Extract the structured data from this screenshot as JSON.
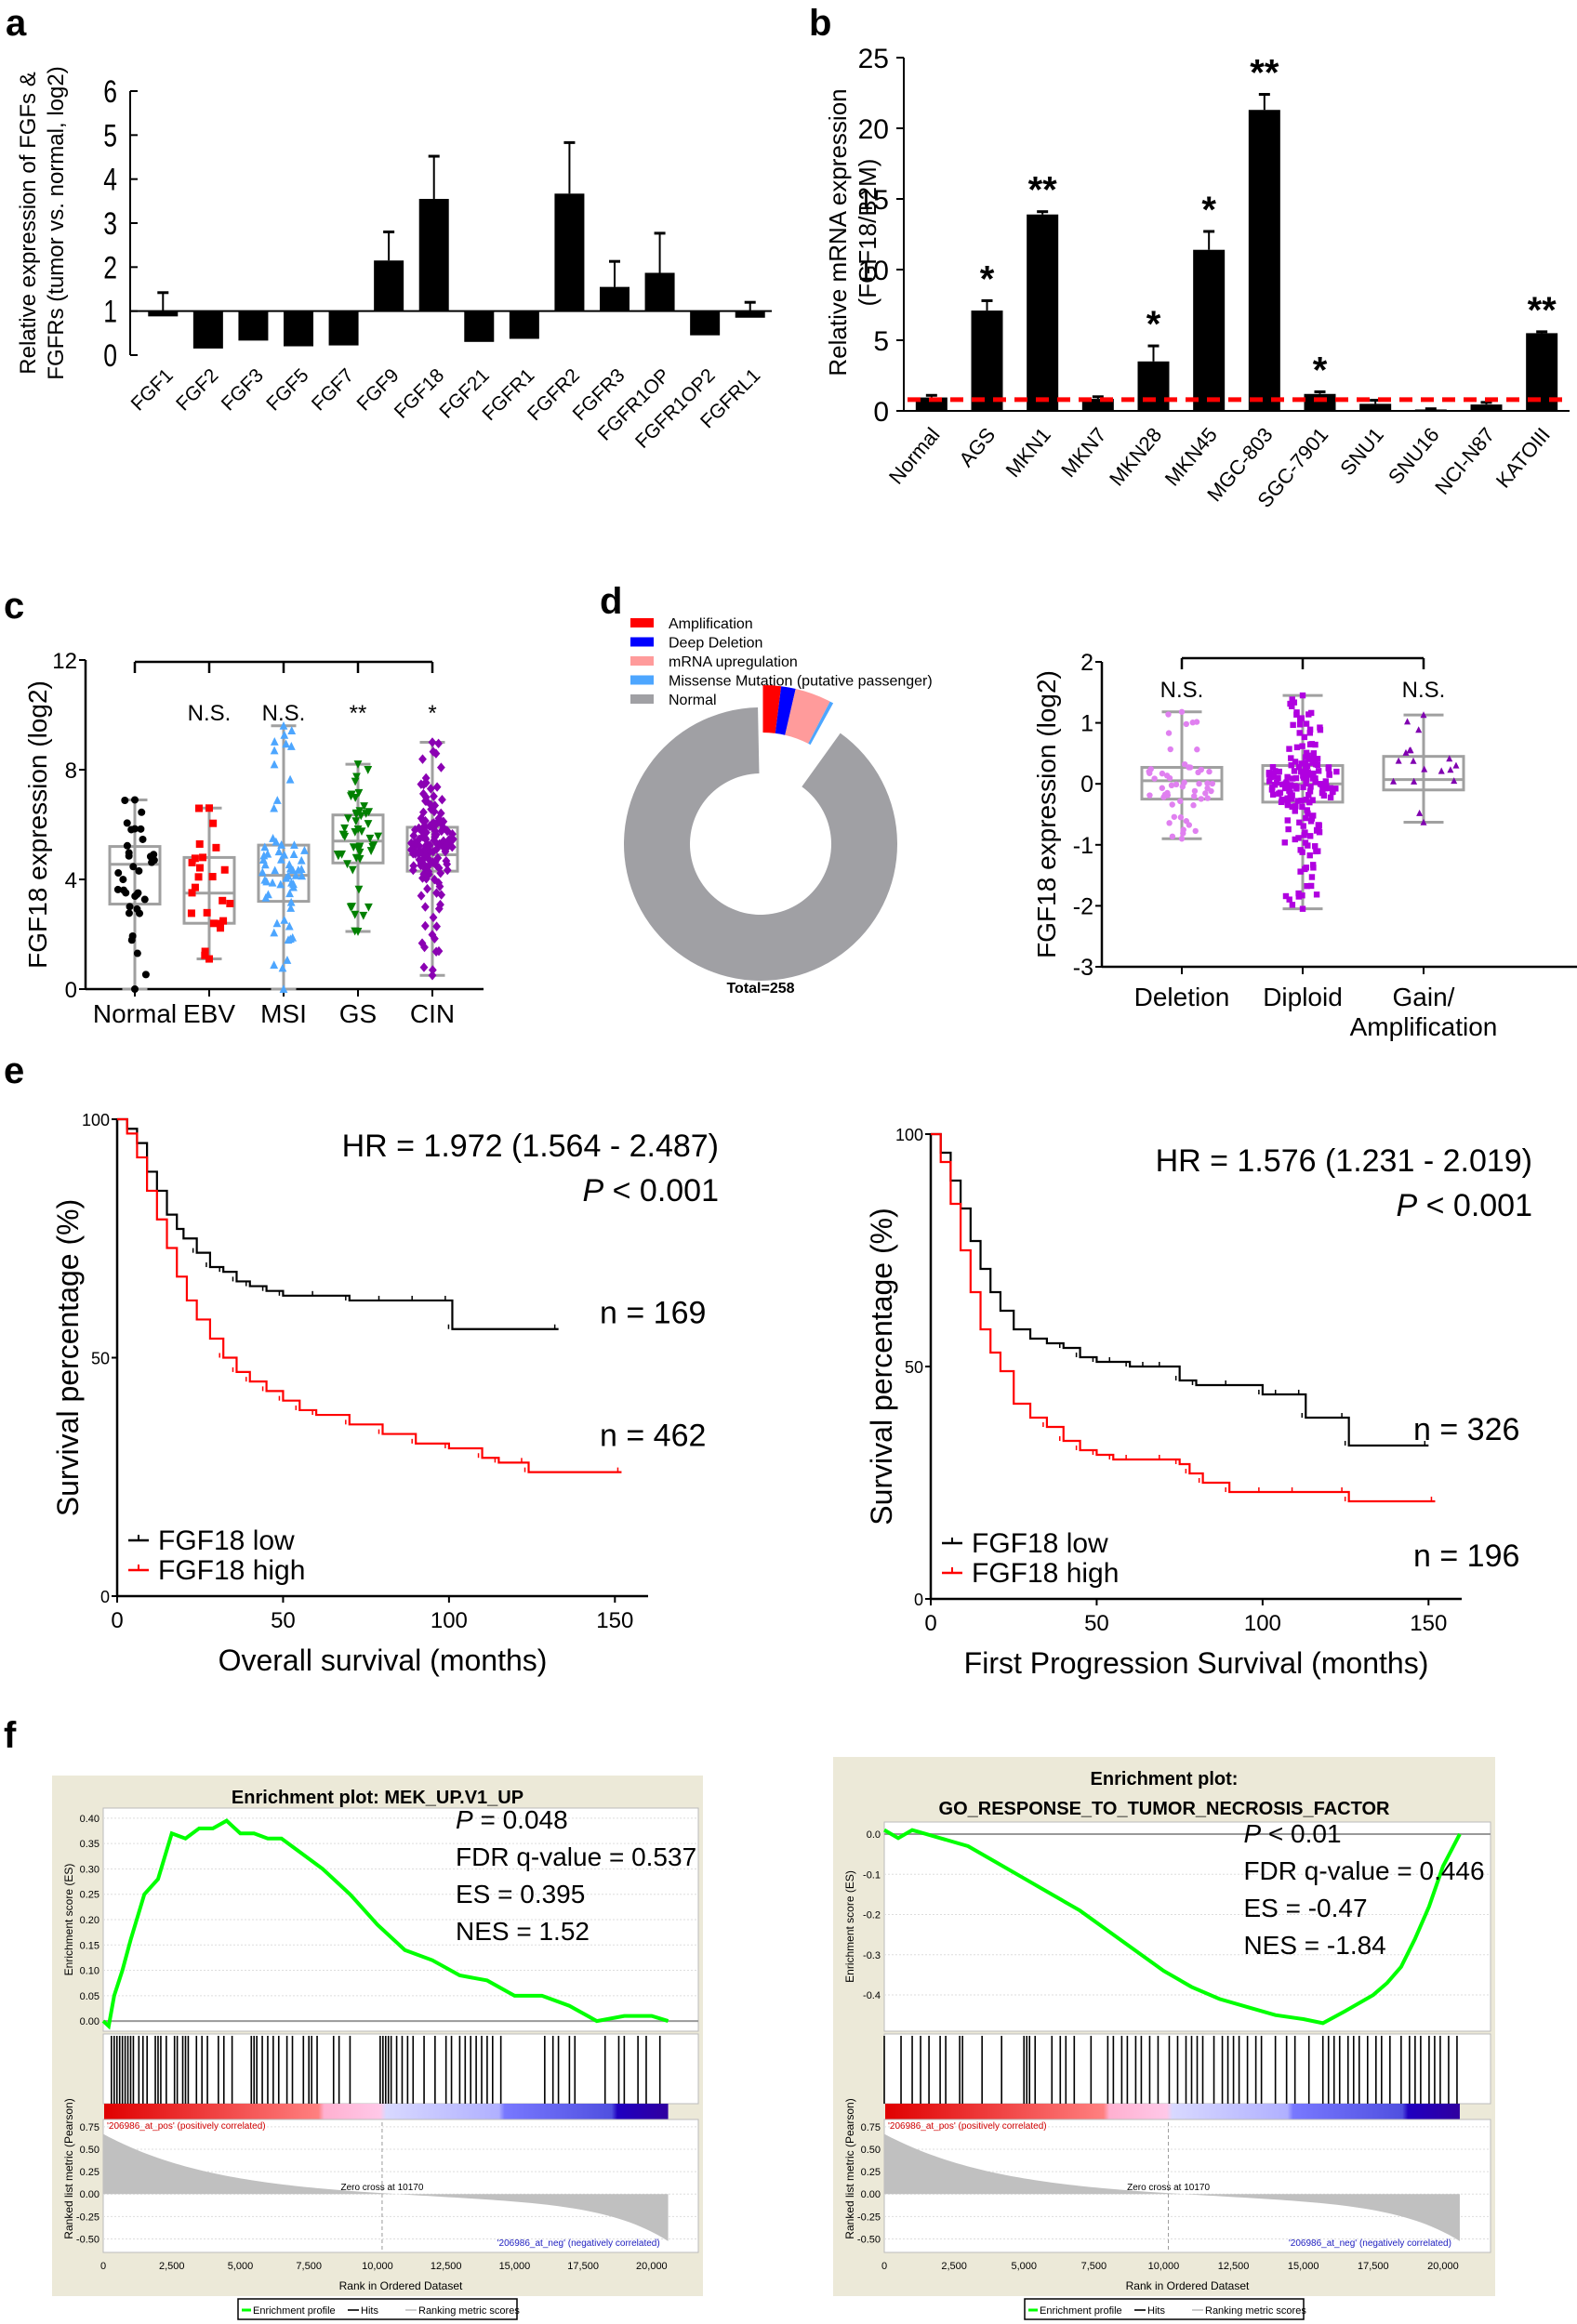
{
  "panel_labels": [
    "a",
    "b",
    "c",
    "d",
    "e",
    "f"
  ],
  "chart_data": [
    {
      "id": "a",
      "type": "bar",
      "title": "",
      "xlabel": "",
      "ylabel": "Relative expression of FGFs & FGFRs (tumor vs. normal, log2)",
      "ylabel_lines": [
        "Relative expression of FGFs &",
        "FGFRs (tumor vs. normal, log2)"
      ],
      "baseline": 1,
      "ylim": [
        0,
        6
      ],
      "yticks": [
        "0",
        "1",
        "2",
        "3",
        "4",
        "5",
        "6"
      ],
      "categories": [
        "FGF1",
        "FGF2",
        "FGF3",
        "FGF5",
        "FGF7",
        "FGF9",
        "FGF18",
        "FGF21",
        "FGFR1",
        "FGFR2",
        "FGFR3",
        "FGFR1OP",
        "FGFR1OP2",
        "FGFRL1"
      ],
      "values": [
        0.88,
        0.15,
        0.33,
        0.2,
        0.22,
        2.15,
        3.55,
        0.3,
        0.37,
        3.67,
        1.55,
        1.87,
        0.45,
        0.85
      ],
      "error_upper": [
        1.42,
        null,
        null,
        null,
        null,
        2.8,
        4.52,
        null,
        null,
        4.83,
        2.13,
        2.77,
        null,
        1.2
      ]
    },
    {
      "id": "b",
      "type": "bar",
      "title": "",
      "xlabel": "",
      "ylabel_lines": [
        "Relative mRNA expression",
        "(FGF18/B2M)"
      ],
      "ylim": [
        0,
        25
      ],
      "yticks": [
        "0",
        "5",
        "10",
        "15",
        "20",
        "25"
      ],
      "categories": [
        "Normal",
        "AGS",
        "MKN1",
        "MKN7",
        "MKN28",
        "MKN45",
        "MGC-803",
        "SGC-7901",
        "SNU1",
        "SNU16",
        "NCI-N87",
        "KATOIII"
      ],
      "values": [
        0.95,
        7.1,
        13.9,
        0.85,
        3.5,
        11.4,
        21.3,
        1.2,
        0.5,
        0.1,
        0.45,
        5.5
      ],
      "error_upper": [
        1.1,
        7.8,
        14.1,
        1.0,
        4.6,
        12.7,
        22.4,
        1.35,
        0.75,
        0.15,
        0.6,
        5.6
      ],
      "significance": [
        "",
        "*",
        "**",
        "",
        "*",
        "*",
        "**",
        "*",
        "",
        "",
        "",
        "**"
      ],
      "reference_line": {
        "value": 0.8,
        "color": "#ff0000",
        "style": "dashed"
      }
    },
    {
      "id": "c",
      "type": "box",
      "ylabel": "FGF18 expression (log2)",
      "ylim": [
        0,
        12
      ],
      "yticks": [
        "0",
        "4",
        "8",
        "12"
      ],
      "categories": [
        "Normal",
        "EBV",
        "MSI",
        "GS",
        "CIN"
      ],
      "colors": [
        "#000000",
        "#ff0000",
        "#4da6ff",
        "#008000",
        "#8b00b3"
      ],
      "markers": [
        "circle",
        "square",
        "triangle-up",
        "triangle-down",
        "diamond"
      ],
      "boxes": [
        {
          "min": 0.0,
          "q1": 3.1,
          "median": 4.55,
          "q3": 5.2,
          "max": 6.9,
          "n": 35
        },
        {
          "min": 1.1,
          "q1": 2.4,
          "median": 3.5,
          "q3": 4.8,
          "max": 6.6,
          "n": 25
        },
        {
          "min": 0.0,
          "q1": 3.2,
          "median": 4.15,
          "q3": 5.25,
          "max": 9.6,
          "n": 60
        },
        {
          "min": 2.1,
          "q1": 4.6,
          "median": 5.4,
          "q3": 6.35,
          "max": 8.2,
          "n": 50
        },
        {
          "min": 0.5,
          "q1": 4.3,
          "median": 4.9,
          "q3": 5.9,
          "max": 9.0,
          "n": 140
        }
      ],
      "significance": [
        "",
        "N.S.",
        "N.S.",
        "**",
        "*"
      ],
      "comparison_bracket": "Normal vs all"
    },
    {
      "id": "d1",
      "type": "pie",
      "style": "donut",
      "total_label": "Total=258",
      "legend": [
        "Amplification",
        "Deep Deletion",
        "mRNA upregulation",
        "Missense Mutation (putative passenger)",
        "Normal"
      ],
      "colors": [
        "#ff0000",
        "#0000ff",
        "#ff9b9b",
        "#4da6ff",
        "#a0a0a4"
      ],
      "values": [
        2.0,
        1.6,
        4.0,
        0.4,
        92.0
      ],
      "unit": "%"
    },
    {
      "id": "d2",
      "type": "box",
      "ylabel": "FGF18 expression (log2)",
      "ylim": [
        -3,
        2
      ],
      "yticks": [
        "-3",
        "-2",
        "-1",
        "0",
        "1",
        "2"
      ],
      "categories": [
        "Deletion",
        "Diploid",
        "Gain/ Amplification"
      ],
      "category_lines": [
        [
          "Deletion"
        ],
        [
          "Diploid"
        ],
        [
          "Gain/",
          "Amplification"
        ]
      ],
      "colors": [
        "#e080f0",
        "#b000e0",
        "#8000b0"
      ],
      "markers": [
        "circle",
        "square",
        "triangle-up"
      ],
      "boxes": [
        {
          "min": -0.9,
          "q1": -0.25,
          "median": 0.05,
          "q3": 0.27,
          "max": 1.18,
          "n": 55
        },
        {
          "min": -2.05,
          "q1": -0.3,
          "median": 0.0,
          "q3": 0.3,
          "max": 1.45,
          "n": 180
        },
        {
          "min": -0.63,
          "q1": -0.1,
          "median": 0.07,
          "q3": 0.45,
          "max": 1.13,
          "n": 18
        }
      ],
      "significance": [
        "N.S.",
        "",
        "N.S."
      ]
    },
    {
      "id": "e1",
      "type": "line",
      "subtype": "kaplan-meier",
      "xlabel": "Overall survival (months)",
      "ylabel": "Survival percentage (%)",
      "xlim": [
        0,
        160
      ],
      "ylim": [
        0,
        100
      ],
      "xticks": [
        "0",
        "50",
        "100",
        "150"
      ],
      "yticks": [
        "0",
        "50",
        "100"
      ],
      "hr_text": "HR = 1.972 (1.564 - 2.487)",
      "p_label": "P",
      "p_text": " < 0.001",
      "series": [
        {
          "name": "FGF18 low",
          "color": "#000000",
          "n_label": "n = 169",
          "x": [
            0,
            3,
            6,
            9,
            12,
            15,
            18,
            20,
            24,
            28,
            32,
            36,
            40,
            45,
            50,
            60,
            70,
            80,
            90,
            100,
            101,
            133
          ],
          "y": [
            100,
            98,
            95,
            89,
            85,
            80,
            77,
            75,
            72,
            69,
            68,
            66,
            65,
            64,
            63,
            63,
            62,
            62,
            62,
            62,
            56,
            56
          ]
        },
        {
          "name": "FGF18 high",
          "color": "#ff0000",
          "n_label": "n = 462",
          "x": [
            0,
            3,
            6,
            9,
            12,
            15,
            18,
            21,
            24,
            28,
            32,
            36,
            40,
            45,
            50,
            55,
            60,
            70,
            80,
            90,
            100,
            110,
            115,
            123,
            124,
            152
          ],
          "y": [
            100,
            97,
            92,
            85,
            79,
            73,
            67,
            62,
            58,
            54,
            50,
            47,
            45,
            43,
            41,
            39,
            38,
            36,
            34,
            32,
            31,
            29,
            28,
            28,
            26,
            26
          ]
        }
      ]
    },
    {
      "id": "e2",
      "type": "line",
      "subtype": "kaplan-meier",
      "xlabel": "First Progression Survival (months)",
      "ylabel": "Survival percentage (%)",
      "xlim": [
        0,
        160
      ],
      "ylim": [
        0,
        100
      ],
      "xticks": [
        "0",
        "50",
        "100",
        "150"
      ],
      "yticks": [
        "0",
        "50",
        "100"
      ],
      "hr_text": "HR = 1.576 (1.231 - 2.019)",
      "p_label": "P",
      "p_text": " < 0.001",
      "series": [
        {
          "name": "FGF18 low",
          "color": "#000000",
          "n_label": "n = 326",
          "x": [
            0,
            3,
            6,
            9,
            12,
            15,
            18,
            21,
            25,
            30,
            35,
            40,
            45,
            50,
            55,
            60,
            65,
            70,
            75,
            80,
            90,
            100,
            105,
            112,
            113,
            125,
            126,
            150
          ],
          "y": [
            100,
            96,
            90,
            84,
            77,
            71,
            66,
            62,
            58,
            56,
            55,
            54,
            52,
            51,
            51,
            50,
            50,
            50,
            47,
            46,
            46,
            44,
            44,
            44,
            39,
            39,
            33,
            33
          ]
        },
        {
          "name": "FGF18 high",
          "color": "#ff0000",
          "n_label": "n = 196",
          "x": [
            0,
            3,
            6,
            9,
            12,
            15,
            18,
            21,
            25,
            30,
            35,
            40,
            45,
            50,
            55,
            60,
            70,
            75,
            78,
            82,
            90,
            100,
            110,
            125,
            126,
            152
          ],
          "y": [
            100,
            94,
            85,
            75,
            66,
            58,
            53,
            49,
            42,
            39,
            37,
            34,
            32,
            31,
            30,
            30,
            30,
            29,
            27,
            25,
            23,
            23,
            23,
            23,
            21,
            21
          ]
        }
      ]
    },
    {
      "id": "f1",
      "type": "line",
      "subtype": "gsea",
      "title": "Enrichment plot: MEK_UP.V1_UP",
      "title_lines": [
        "Enrichment plot: MEK_UP.V1_UP"
      ],
      "es_ylabel": "Enrichment score (ES)",
      "es_ylim": [
        -0.02,
        0.42
      ],
      "es_yticks": [
        "0.00",
        "0.05",
        "0.10",
        "0.15",
        "0.20",
        "0.25",
        "0.30",
        "0.35",
        "0.40"
      ],
      "es_x": [
        0,
        200,
        400,
        700,
        1000,
        1500,
        2000,
        2500,
        3000,
        3500,
        4000,
        4500,
        5000,
        5500,
        6000,
        6500,
        7000,
        8000,
        9000,
        10000,
        11000,
        12000,
        13000,
        14000,
        15000,
        16000,
        17000,
        18000,
        19000,
        20000,
        20600
      ],
      "es_y": [
        0,
        -0.01,
        0.05,
        0.1,
        0.16,
        0.25,
        0.28,
        0.37,
        0.36,
        0.38,
        0.38,
        0.395,
        0.37,
        0.37,
        0.36,
        0.36,
        0.34,
        0.3,
        0.25,
        0.19,
        0.14,
        0.12,
        0.09,
        0.08,
        0.05,
        0.05,
        0.03,
        0.0,
        0.01,
        0.01,
        0.0
      ],
      "stats": {
        "p_label": "P",
        "p_text": " = 0.048",
        "fdr": "FDR q-value = 0.537",
        "es": "ES = 0.395",
        "nes": "NES = 1.52"
      },
      "metric_ylabel": "Ranked list metric (Pearson)",
      "metric_ylim": [
        -0.65,
        0.8
      ],
      "metric_yticks": [
        "0.75",
        "0.50",
        "0.25",
        "0.00",
        "-0.25",
        "-0.50"
      ],
      "xlabel": "Rank in Ordered Dataset",
      "xlim": [
        0,
        21700
      ],
      "xticks": [
        "0",
        "2,500",
        "5,000",
        "7,500",
        "10,000",
        "12,500",
        "15,000",
        "17,500",
        "20,000"
      ],
      "zero_cross": "Zero cross at 10170",
      "pos_label": "'206986_at_pos' (positively correlated)",
      "neg_label": "'206986_at_neg' (negatively correlated)",
      "hits": [
        300,
        400,
        500,
        600,
        700,
        800,
        900,
        1000,
        1100,
        1300,
        1450,
        1600,
        1900,
        2000,
        2100,
        2300,
        2600,
        2700,
        2900,
        3000,
        3100,
        3400,
        3600,
        3800,
        4200,
        4400,
        4700,
        5400,
        5500,
        5600,
        5800,
        6000,
        6200,
        6400,
        6700,
        6900,
        7300,
        7500,
        7600,
        7800,
        8400,
        8600,
        9000,
        10100,
        10200,
        10300,
        10400,
        10500,
        10700,
        10900,
        11100,
        11300,
        11700,
        12100,
        12500,
        12700,
        13000,
        13200,
        13400,
        13600,
        13800,
        14000,
        14200,
        14500,
        16100,
        16400,
        16600,
        17000,
        17200,
        18300,
        18800,
        19000,
        19500,
        19800,
        20300
      ],
      "legend": [
        "Enrichment profile",
        "Hits",
        "Ranking metric scores"
      ]
    },
    {
      "id": "f2",
      "type": "line",
      "subtype": "gsea",
      "title": "Enrichment plot: GO_RESPONSE_TO_TUMOR_NECROSIS_FACTOR",
      "title_lines": [
        "Enrichment plot:",
        "GO_RESPONSE_TO_TUMOR_NECROSIS_FACTOR"
      ],
      "es_ylabel": "Enrichment score (ES)",
      "es_ylim": [
        -0.49,
        0.03
      ],
      "es_yticks": [
        "0.0",
        "-0.1",
        "-0.2",
        "-0.3",
        "-0.4"
      ],
      "es_x": [
        0,
        500,
        1000,
        1500,
        2000,
        2500,
        3000,
        4000,
        5000,
        6000,
        7000,
        8000,
        9000,
        10000,
        11000,
        12000,
        13000,
        14000,
        15000,
        15700,
        16500,
        17500,
        18000,
        18500,
        19000,
        19500,
        20000,
        20600
      ],
      "es_y": [
        0.01,
        -0.01,
        0.01,
        0.0,
        -0.01,
        -0.02,
        -0.03,
        -0.07,
        -0.11,
        -0.15,
        -0.19,
        -0.24,
        -0.29,
        -0.34,
        -0.38,
        -0.41,
        -0.43,
        -0.45,
        -0.46,
        -0.47,
        -0.44,
        -0.4,
        -0.37,
        -0.33,
        -0.26,
        -0.18,
        -0.08,
        0.0
      ],
      "stats": {
        "p_label": "P",
        "p_text": " < 0.01",
        "fdr": "FDR q-value = 0.446",
        "es": "ES = -0.47",
        "nes": "NES = -1.84"
      },
      "metric_ylabel": "Ranked list metric (Pearson)",
      "metric_ylim": [
        -0.65,
        0.8
      ],
      "metric_yticks": [
        "0.75",
        "0.50",
        "0.25",
        "0.00",
        "-0.25",
        "-0.50"
      ],
      "xlabel": "Rank in Ordered Dataset",
      "xlim": [
        0,
        21700
      ],
      "xticks": [
        "0",
        "2,500",
        "5,000",
        "7,500",
        "10,000",
        "12,500",
        "15,000",
        "17,500",
        "20,000"
      ],
      "zero_cross": "Zero cross at 10170",
      "pos_label": "'206986_at_pos' (positively correlated)",
      "neg_label": "'206986_at_neg' (negatively correlated)",
      "hits": [
        0,
        600,
        1000,
        1300,
        1600,
        2000,
        2200,
        2700,
        2800,
        3500,
        4200,
        5000,
        5100,
        5200,
        5400,
        6000,
        6300,
        6500,
        6800,
        7400,
        8000,
        8200,
        8500,
        8700,
        9000,
        9200,
        9500,
        9800,
        10200,
        10500,
        10800,
        11000,
        11200,
        11400,
        11800,
        12100,
        12300,
        12500,
        12700,
        13000,
        13300,
        13500,
        14000,
        14400,
        14700,
        15200,
        15700,
        15900,
        16100,
        16300,
        16600,
        16800,
        17000,
        17300,
        17600,
        17800,
        18100,
        18500,
        18800,
        19000,
        19200,
        19500,
        19700,
        19900,
        20200,
        20500
      ],
      "legend": [
        "Enrichment profile",
        "Hits",
        "Ranking metric scores"
      ]
    }
  ]
}
